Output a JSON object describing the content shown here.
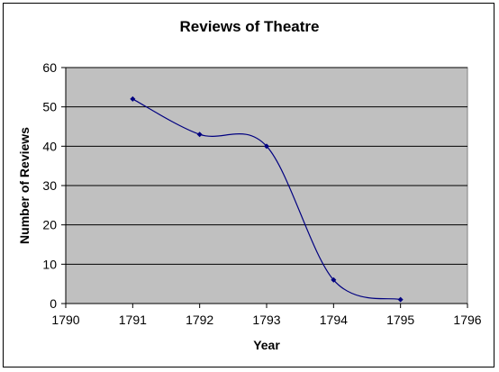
{
  "chart_data": {
    "type": "scatter",
    "title": "Reviews of Theatre",
    "xlabel": "Year",
    "ylabel": "Number of Reviews",
    "xlim": [
      1790,
      1796
    ],
    "ylim": [
      0,
      60
    ],
    "xticks": [
      1790,
      1791,
      1792,
      1793,
      1794,
      1795,
      1796
    ],
    "yticks": [
      0,
      10,
      20,
      30,
      40,
      50,
      60
    ],
    "x": [
      1791,
      1792,
      1793,
      1794,
      1795
    ],
    "y": [
      52,
      43,
      40,
      6,
      1
    ],
    "line_style": "smoothed",
    "grid": "horizontal major gridlines",
    "legend": "none",
    "colors": {
      "plot_background": "#c0c0c0",
      "series": "#000080",
      "gridlines": "#000000"
    }
  }
}
